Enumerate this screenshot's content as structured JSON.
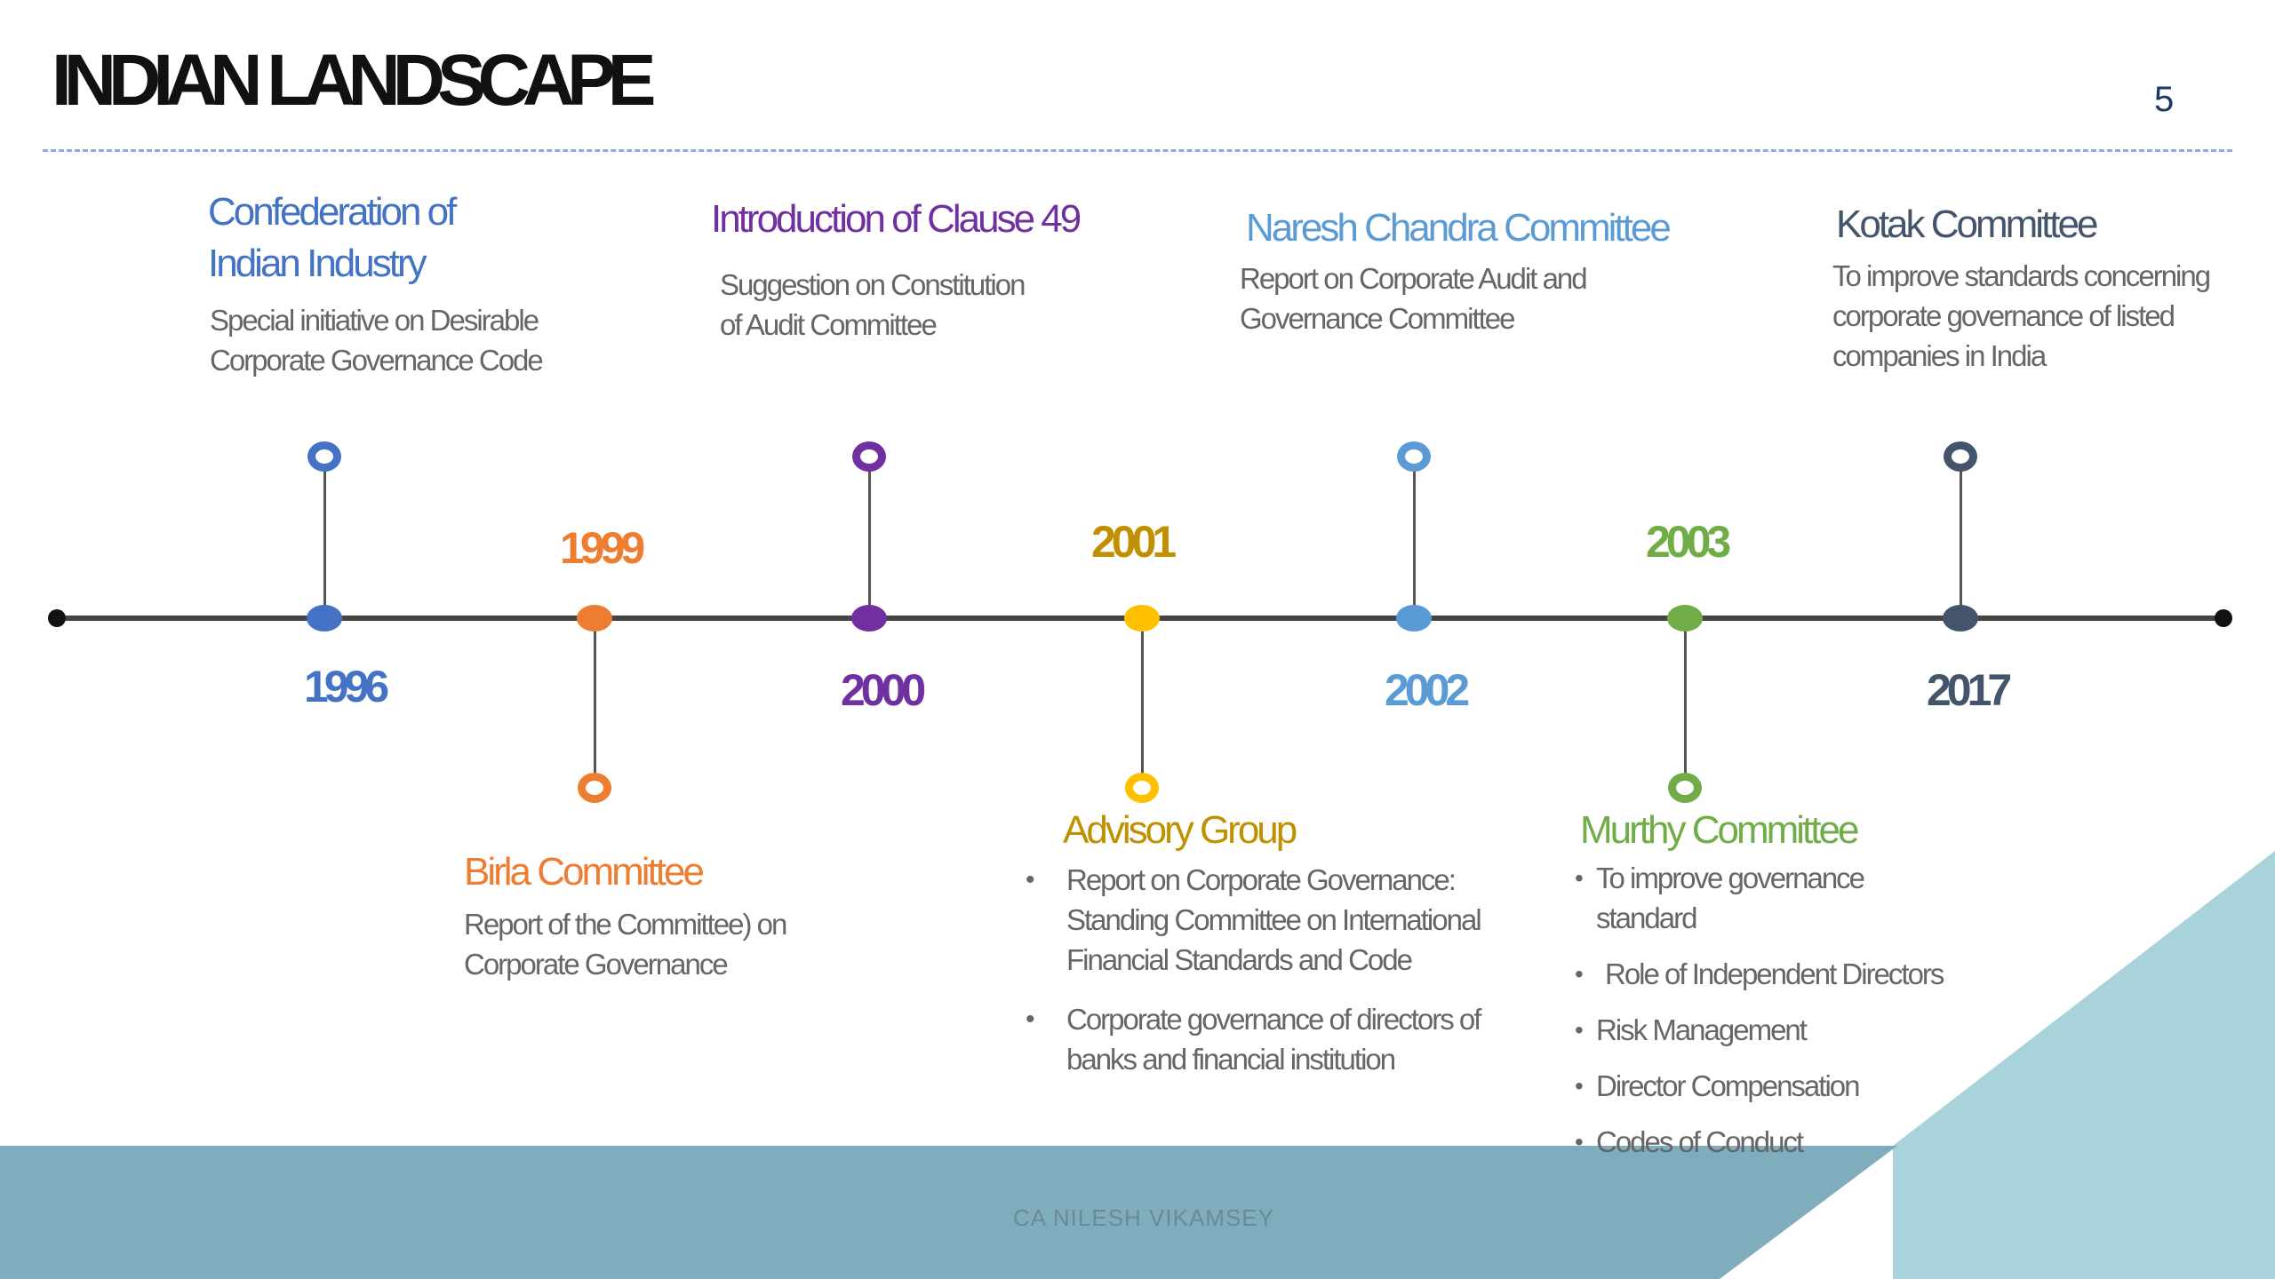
{
  "slide": {
    "title": "INDIAN LANDSCAPE",
    "page_number": "5",
    "footer": "CA NILESH VIKAMSEY"
  },
  "timeline": {
    "events": [
      {
        "year": "1996",
        "color": "#4472c4",
        "heading_lines": [
          "Confederation of",
          "Indian Industry"
        ],
        "description": [
          "Special  initiative on Desirable",
          "Corporate Governance Code"
        ]
      },
      {
        "year": "1999",
        "color": "#ed7d31",
        "heading_lines": [
          "Birla Committee"
        ],
        "description": [
          "Report of the Committee) on",
          "Corporate Governance"
        ]
      },
      {
        "year": "2000",
        "color": "#7030a0",
        "heading_lines": [
          "Introduction of Clause 49"
        ],
        "description": [
          "Suggestion on Constitution",
          "of Audit Committee"
        ]
      },
      {
        "year": "2001",
        "color": "#bf9000",
        "heading_lines": [
          "Advisory Group"
        ],
        "bullets": [
          "Report on Corporate Governance: Standing Committee on International Financial Standards and Code",
          "Corporate governance of directors of banks and financial institution"
        ]
      },
      {
        "year": "2002",
        "color": "#5b9bd5",
        "heading_lines": [
          "Naresh Chandra Committee"
        ],
        "description": [
          "Report on Corporate Audit and",
          "Governance Committee"
        ]
      },
      {
        "year": "2003",
        "color": "#70ad47",
        "heading_lines": [
          "Murthy Committee"
        ],
        "bullets": [
          "To improve governance standard",
          "Role of Independent Directors",
          "Risk Management",
          "Director Compensation",
          "Codes of Conduct"
        ]
      },
      {
        "year": "2017",
        "color": "#44546a",
        "heading_lines": [
          "Kotak Committee"
        ],
        "description": [
          "To improve standards concerning",
          "corporate governance of listed",
          "companies in India"
        ]
      }
    ]
  },
  "colors": {
    "footer_band": "#7fadbd",
    "triangle": "#a8d3db",
    "title": "#111111",
    "page_number": "#1f3864",
    "dashed_line": "#8eaadb",
    "axis": "#444444",
    "yellow_dot": "#ffc000"
  }
}
